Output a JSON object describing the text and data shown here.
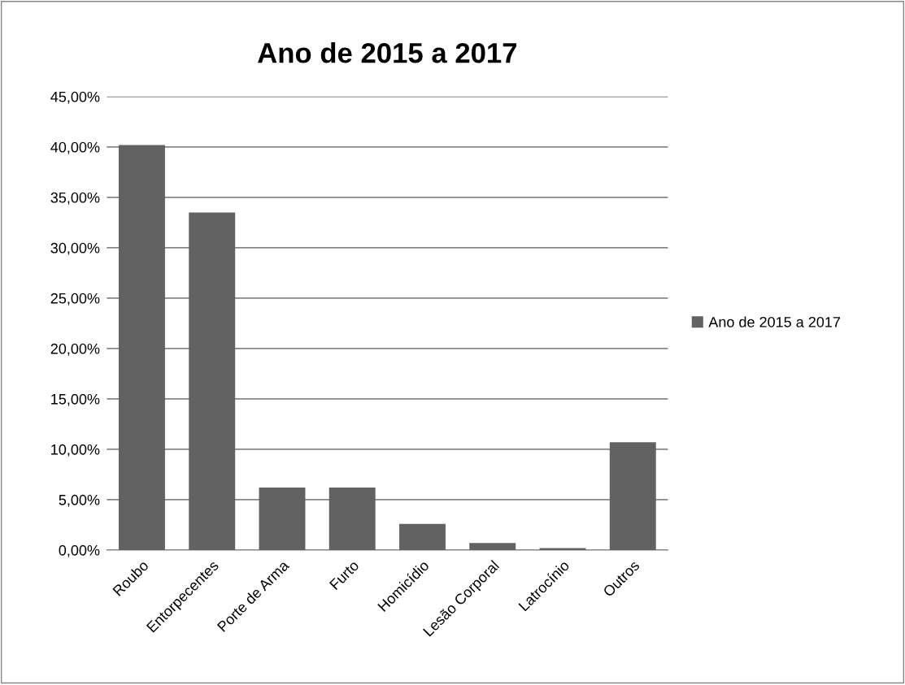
{
  "chart_data": {
    "type": "bar",
    "title": "Ano de 2015 a 2017",
    "categories": [
      "Roubo",
      "Entorpecentes",
      "Porte de Arma",
      "Furto",
      "Homicídio",
      "Lesão Corporal",
      "Latrocínio",
      "Outros"
    ],
    "series": [
      {
        "name": "Ano de 2015 a 2017",
        "color": "#626262",
        "values": [
          40.2,
          33.5,
          6.2,
          6.2,
          2.6,
          0.7,
          0.2,
          10.7
        ]
      }
    ],
    "ylim": [
      0,
      45
    ],
    "yticks": [
      {
        "value": 0,
        "label": "0,00%"
      },
      {
        "value": 5,
        "label": "5,00%"
      },
      {
        "value": 10,
        "label": "10,00%"
      },
      {
        "value": 15,
        "label": "15,00%"
      },
      {
        "value": 20,
        "label": "20,00%"
      },
      {
        "value": 25,
        "label": "25,00%"
      },
      {
        "value": 30,
        "label": "30,00%"
      },
      {
        "value": 35,
        "label": "35,00%"
      },
      {
        "value": 40,
        "label": "40,00%"
      },
      {
        "value": 45,
        "label": "45,00%"
      }
    ],
    "grid": "y",
    "legend": "right"
  }
}
